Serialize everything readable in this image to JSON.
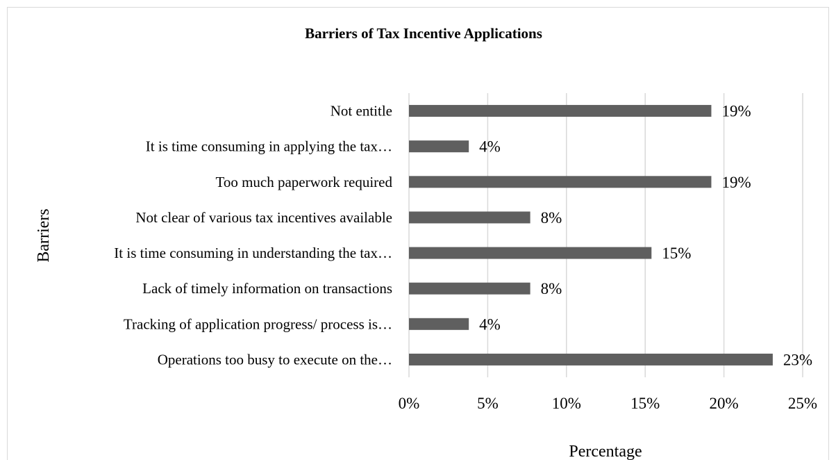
{
  "chart_data": {
    "type": "bar",
    "orientation": "horizontal",
    "title": "Barriers of Tax Incentive Applications",
    "xlabel": "Percentage",
    "ylabel": "Barriers",
    "categories": [
      "Not entitle",
      "It is time consuming in applying the tax…",
      "Too much paperwork required",
      "Not clear of various tax incentives available",
      "It is time consuming in understanding the tax…",
      "Lack of timely information on transactions",
      "Tracking of application progress/ process is…",
      "Operations too busy to execute on the…"
    ],
    "values": [
      19.2,
      3.8,
      19.2,
      7.7,
      15.4,
      7.7,
      3.8,
      23.1
    ],
    "data_labels": [
      "19%",
      "4%",
      "19%",
      "8%",
      "15%",
      "8%",
      "4%",
      "23%"
    ],
    "xlim": [
      0,
      25
    ],
    "xticks": [
      0,
      5,
      10,
      15,
      20,
      25
    ],
    "xtick_labels": [
      "0%",
      "5%",
      "10%",
      "15%",
      "20%",
      "25%"
    ],
    "grid": "vertical",
    "legend": "none",
    "colors": {
      "bar": "#5f5f5f",
      "grid": "#d9d9d9",
      "border": "#d9d9d9"
    }
  }
}
